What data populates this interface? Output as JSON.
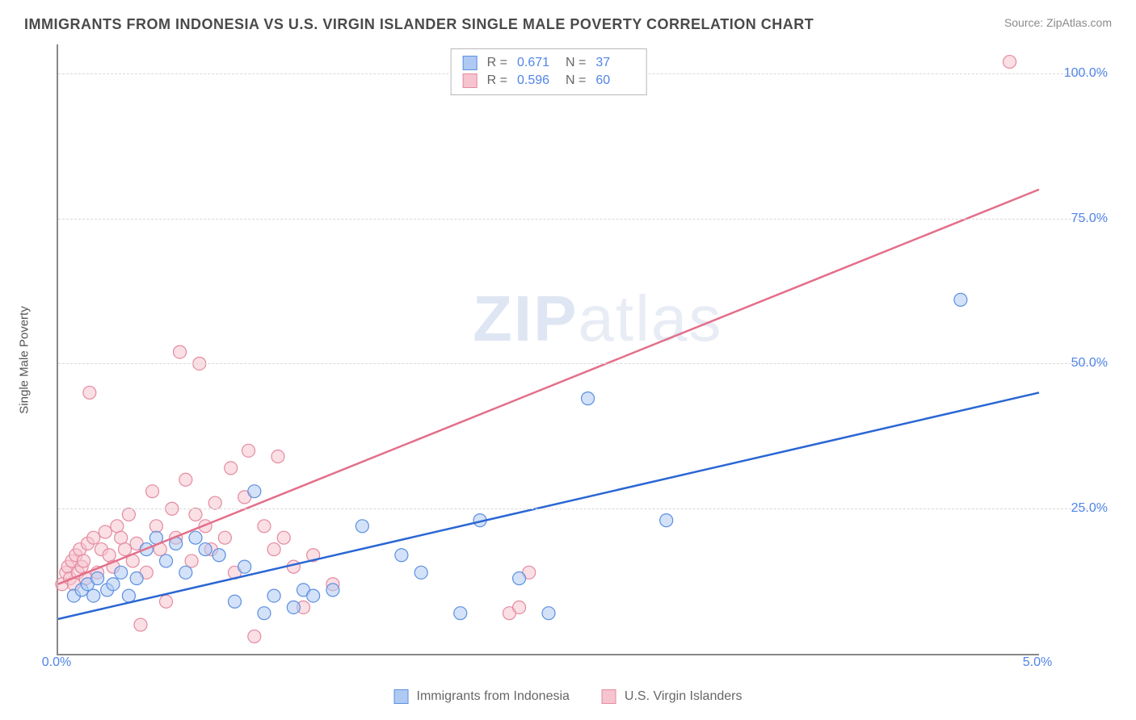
{
  "title": "IMMIGRANTS FROM INDONESIA VS U.S. VIRGIN ISLANDER SINGLE MALE POVERTY CORRELATION CHART",
  "source": "Source: ZipAtlas.com",
  "ylabel": "Single Male Poverty",
  "watermark_a": "ZIP",
  "watermark_b": "atlas",
  "chart": {
    "type": "scatter",
    "xlim": [
      0,
      5
    ],
    "ylim": [
      0,
      105
    ],
    "xticks": [
      {
        "v": 0,
        "l": "0.0%"
      },
      {
        "v": 5,
        "l": "5.0%"
      }
    ],
    "yticks": [
      {
        "v": 25,
        "l": "25.0%"
      },
      {
        "v": 50,
        "l": "50.0%"
      },
      {
        "v": 75,
        "l": "75.0%"
      },
      {
        "v": 100,
        "l": "100.0%"
      }
    ],
    "grid_color": "#d8d8d8",
    "axis_color": "#888888",
    "background": "#ffffff",
    "marker_radius": 8,
    "marker_opacity": 0.55,
    "line_width": 2.5
  },
  "series": {
    "a": {
      "label": "Immigrants from Indonesia",
      "color_fill": "#aecaf2",
      "color_stroke": "#5b8fe0",
      "line_color": "#2a66d4",
      "R": "0.671",
      "N": "37",
      "trend": {
        "x1": 0,
        "y1": 6,
        "x2": 5,
        "y2": 45
      },
      "points": [
        [
          0.08,
          10
        ],
        [
          0.12,
          11
        ],
        [
          0.15,
          12
        ],
        [
          0.18,
          10
        ],
        [
          0.2,
          13
        ],
        [
          0.25,
          11
        ],
        [
          0.28,
          12
        ],
        [
          0.32,
          14
        ],
        [
          0.36,
          10
        ],
        [
          0.4,
          13
        ],
        [
          0.45,
          18
        ],
        [
          0.5,
          20
        ],
        [
          0.55,
          16
        ],
        [
          0.6,
          19
        ],
        [
          0.65,
          14
        ],
        [
          0.7,
          20
        ],
        [
          0.75,
          18
        ],
        [
          0.82,
          17
        ],
        [
          0.9,
          9
        ],
        [
          0.95,
          15
        ],
        [
          1.0,
          28
        ],
        [
          1.05,
          7
        ],
        [
          1.1,
          10
        ],
        [
          1.2,
          8
        ],
        [
          1.25,
          11
        ],
        [
          1.3,
          10
        ],
        [
          1.4,
          11
        ],
        [
          1.55,
          22
        ],
        [
          1.75,
          17
        ],
        [
          1.85,
          14
        ],
        [
          2.05,
          7
        ],
        [
          2.15,
          23
        ],
        [
          2.35,
          13
        ],
        [
          2.5,
          7
        ],
        [
          2.7,
          44
        ],
        [
          3.1,
          23
        ],
        [
          4.6,
          61
        ]
      ]
    },
    "b": {
      "label": "U.S. Virgin Islanders",
      "color_fill": "#f6c4cf",
      "color_stroke": "#e48aa0",
      "line_color": "#e36f8a",
      "R": "0.596",
      "N": "60",
      "trend": {
        "x1": 0,
        "y1": 12,
        "x2": 5,
        "y2": 80
      },
      "points": [
        [
          0.02,
          12
        ],
        [
          0.04,
          14
        ],
        [
          0.05,
          15
        ],
        [
          0.06,
          13
        ],
        [
          0.07,
          16
        ],
        [
          0.08,
          12
        ],
        [
          0.09,
          17
        ],
        [
          0.1,
          14
        ],
        [
          0.11,
          18
        ],
        [
          0.12,
          15
        ],
        [
          0.13,
          16
        ],
        [
          0.14,
          13
        ],
        [
          0.15,
          19
        ],
        [
          0.16,
          45
        ],
        [
          0.18,
          20
        ],
        [
          0.2,
          14
        ],
        [
          0.22,
          18
        ],
        [
          0.24,
          21
        ],
        [
          0.26,
          17
        ],
        [
          0.28,
          15
        ],
        [
          0.3,
          22
        ],
        [
          0.32,
          20
        ],
        [
          0.34,
          18
        ],
        [
          0.36,
          24
        ],
        [
          0.38,
          16
        ],
        [
          0.4,
          19
        ],
        [
          0.42,
          5
        ],
        [
          0.45,
          14
        ],
        [
          0.48,
          28
        ],
        [
          0.5,
          22
        ],
        [
          0.52,
          18
        ],
        [
          0.55,
          9
        ],
        [
          0.58,
          25
        ],
        [
          0.6,
          20
        ],
        [
          0.62,
          52
        ],
        [
          0.65,
          30
        ],
        [
          0.68,
          16
        ],
        [
          0.7,
          24
        ],
        [
          0.72,
          50
        ],
        [
          0.75,
          22
        ],
        [
          0.78,
          18
        ],
        [
          0.8,
          26
        ],
        [
          0.85,
          20
        ],
        [
          0.88,
          32
        ],
        [
          0.9,
          14
        ],
        [
          0.95,
          27
        ],
        [
          0.97,
          35
        ],
        [
          1.0,
          3
        ],
        [
          1.05,
          22
        ],
        [
          1.1,
          18
        ],
        [
          1.12,
          34
        ],
        [
          1.15,
          20
        ],
        [
          1.2,
          15
        ],
        [
          1.25,
          8
        ],
        [
          1.3,
          17
        ],
        [
          1.4,
          12
        ],
        [
          2.3,
          7
        ],
        [
          2.35,
          8
        ],
        [
          2.4,
          14
        ],
        [
          4.85,
          102
        ]
      ]
    }
  },
  "legend_top": {
    "r_prefix": "R  =",
    "n_prefix": "N  ="
  }
}
